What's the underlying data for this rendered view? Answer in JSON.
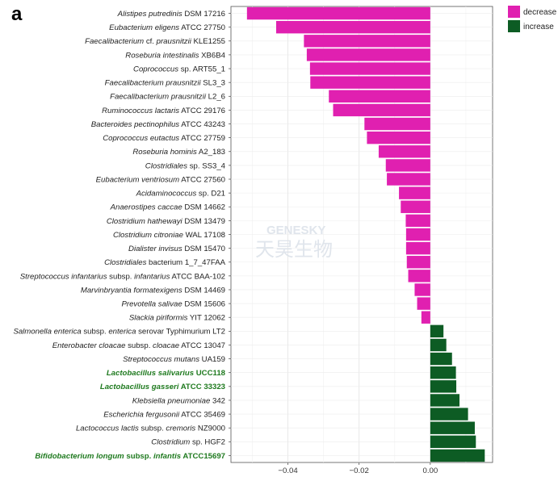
{
  "panel_label": "a",
  "watermark": {
    "line1": "GENESKY",
    "line2": "天昊生物"
  },
  "chart_data": {
    "type": "bar",
    "orientation": "horizontal",
    "xlim": [
      -0.056,
      0.0175
    ],
    "x_ticks": [
      -0.04,
      -0.02,
      0.0
    ],
    "x_tick_labels": [
      "−0.04",
      "−0.02",
      "0.00"
    ],
    "grid": true,
    "legend": {
      "placement": "top-right",
      "entries": [
        {
          "label": "decrease",
          "color": "#e020b0"
        },
        {
          "label": "increase",
          "color": "#0d5c24"
        }
      ]
    },
    "colors": {
      "decrease": "#e020b0",
      "increase": "#0d5c24",
      "highlight_text": "#1f7a1f"
    },
    "bars": [
      {
        "parts": [
          {
            "t": "Alistipes putredinis",
            "i": true
          },
          {
            "t": " DSM 17216",
            "i": false
          }
        ],
        "value": -0.0515,
        "group": "decrease",
        "highlight": false
      },
      {
        "parts": [
          {
            "t": "Eubacterium eligens",
            "i": true
          },
          {
            "t": " ATCC 27750",
            "i": false
          }
        ],
        "value": -0.0433,
        "group": "decrease",
        "highlight": false
      },
      {
        "parts": [
          {
            "t": "Faecalibacterium",
            "i": true
          },
          {
            "t": " cf. ",
            "i": false
          },
          {
            "t": "prausnitzii",
            "i": true
          },
          {
            "t": " KLE1255",
            "i": false
          }
        ],
        "value": -0.0355,
        "group": "decrease",
        "highlight": false
      },
      {
        "parts": [
          {
            "t": "Roseburia intestinalis",
            "i": true
          },
          {
            "t": " XB6B4",
            "i": false
          }
        ],
        "value": -0.0347,
        "group": "decrease",
        "highlight": false
      },
      {
        "parts": [
          {
            "t": "Coprococcus",
            "i": true
          },
          {
            "t": " sp. ART55_1",
            "i": false
          }
        ],
        "value": -0.0338,
        "group": "decrease",
        "highlight": false
      },
      {
        "parts": [
          {
            "t": "Faecalibacterium prausnitzii",
            "i": true
          },
          {
            "t": " SL3_3",
            "i": false
          }
        ],
        "value": -0.0337,
        "group": "decrease",
        "highlight": false
      },
      {
        "parts": [
          {
            "t": "Faecalibacterium prausnitzii",
            "i": true
          },
          {
            "t": " L2_6",
            "i": false
          }
        ],
        "value": -0.0285,
        "group": "decrease",
        "highlight": false
      },
      {
        "parts": [
          {
            "t": "Ruminococcus lactaris",
            "i": true
          },
          {
            "t": " ATCC 29176",
            "i": false
          }
        ],
        "value": -0.0273,
        "group": "decrease",
        "highlight": false
      },
      {
        "parts": [
          {
            "t": "Bacteroides pectinophilus",
            "i": true
          },
          {
            "t": " ATCC 43243",
            "i": false
          }
        ],
        "value": -0.0185,
        "group": "decrease",
        "highlight": false
      },
      {
        "parts": [
          {
            "t": "Coprococcus eutactus",
            "i": true
          },
          {
            "t": " ATCC 27759",
            "i": false
          }
        ],
        "value": -0.0178,
        "group": "decrease",
        "highlight": false
      },
      {
        "parts": [
          {
            "t": "Roseburia hominis",
            "i": true
          },
          {
            "t": " A2_183",
            "i": false
          }
        ],
        "value": -0.0145,
        "group": "decrease",
        "highlight": false
      },
      {
        "parts": [
          {
            "t": "Clostridiales",
            "i": true
          },
          {
            "t": " sp. SS3_4",
            "i": false
          }
        ],
        "value": -0.0125,
        "group": "decrease",
        "highlight": false
      },
      {
        "parts": [
          {
            "t": "Eubacterium ventriosum",
            "i": true
          },
          {
            "t": " ATCC 27560",
            "i": false
          }
        ],
        "value": -0.0122,
        "group": "decrease",
        "highlight": false
      },
      {
        "parts": [
          {
            "t": "Acidaminococcus",
            "i": true
          },
          {
            "t": " sp. D21",
            "i": false
          }
        ],
        "value": -0.0088,
        "group": "decrease",
        "highlight": false
      },
      {
        "parts": [
          {
            "t": "Anaerostipes caccae",
            "i": true
          },
          {
            "t": " DSM 14662",
            "i": false
          }
        ],
        "value": -0.0083,
        "group": "decrease",
        "highlight": false
      },
      {
        "parts": [
          {
            "t": "Clostridium hathewayi",
            "i": true
          },
          {
            "t": " DSM 13479",
            "i": false
          }
        ],
        "value": -0.0069,
        "group": "decrease",
        "highlight": false
      },
      {
        "parts": [
          {
            "t": "Clostridium citroniae",
            "i": true
          },
          {
            "t": " WAL 17108",
            "i": false
          }
        ],
        "value": -0.0068,
        "group": "decrease",
        "highlight": false
      },
      {
        "parts": [
          {
            "t": "Dialister invisus",
            "i": true
          },
          {
            "t": " DSM 15470",
            "i": false
          }
        ],
        "value": -0.0068,
        "group": "decrease",
        "highlight": false
      },
      {
        "parts": [
          {
            "t": "Clostridiales",
            "i": true
          },
          {
            "t": " bacterium 1_7_47FAA",
            "i": false
          }
        ],
        "value": -0.0066,
        "group": "decrease",
        "highlight": false
      },
      {
        "parts": [
          {
            "t": "Streptococcus infantarius",
            "i": true
          },
          {
            "t": " subsp. ",
            "i": false
          },
          {
            "t": "infantarius",
            "i": true
          },
          {
            "t": " ATCC BAA-102",
            "i": false
          }
        ],
        "value": -0.0062,
        "group": "decrease",
        "highlight": false
      },
      {
        "parts": [
          {
            "t": "Marvinbryantia formatexigens",
            "i": true
          },
          {
            "t": " DSM 14469",
            "i": false
          }
        ],
        "value": -0.0044,
        "group": "decrease",
        "highlight": false
      },
      {
        "parts": [
          {
            "t": "Prevotella salivae",
            "i": true
          },
          {
            "t": " DSM 15606",
            "i": false
          }
        ],
        "value": -0.0037,
        "group": "decrease",
        "highlight": false
      },
      {
        "parts": [
          {
            "t": "Slackia piriformis",
            "i": true
          },
          {
            "t": " YIT 12062",
            "i": false
          }
        ],
        "value": -0.0025,
        "group": "decrease",
        "highlight": false
      },
      {
        "parts": [
          {
            "t": "Salmonella enterica",
            "i": true
          },
          {
            "t": " subsp. ",
            "i": false
          },
          {
            "t": "enterica",
            "i": true
          },
          {
            "t": " serovar Typhimurium LT2",
            "i": false
          }
        ],
        "value": 0.0037,
        "group": "increase",
        "highlight": false
      },
      {
        "parts": [
          {
            "t": "Enterobacter cloacae",
            "i": true
          },
          {
            "t": " subsp. ",
            "i": false
          },
          {
            "t": "cloacae",
            "i": true
          },
          {
            "t": " ATCC 13047",
            "i": false
          }
        ],
        "value": 0.0045,
        "group": "increase",
        "highlight": false
      },
      {
        "parts": [
          {
            "t": "Streptococcus mutans",
            "i": true
          },
          {
            "t": " UA159",
            "i": false
          }
        ],
        "value": 0.0061,
        "group": "increase",
        "highlight": false
      },
      {
        "parts": [
          {
            "t": "Lactobacillus salivarius",
            "i": true
          },
          {
            "t": " UCC118",
            "i": false
          }
        ],
        "value": 0.0072,
        "group": "increase",
        "highlight": true
      },
      {
        "parts": [
          {
            "t": "Lactobacillus gasseri",
            "i": true
          },
          {
            "t": " ATCC 33323",
            "i": false
          }
        ],
        "value": 0.0073,
        "group": "increase",
        "highlight": true
      },
      {
        "parts": [
          {
            "t": "Klebsiella pneumoniae",
            "i": true
          },
          {
            "t": " 342",
            "i": false
          }
        ],
        "value": 0.0082,
        "group": "increase",
        "highlight": false
      },
      {
        "parts": [
          {
            "t": "Escherichia fergusonii",
            "i": true
          },
          {
            "t": " ATCC 35469",
            "i": false
          }
        ],
        "value": 0.0106,
        "group": "increase",
        "highlight": false
      },
      {
        "parts": [
          {
            "t": "Lactococcus lactis",
            "i": true
          },
          {
            "t": " subsp. ",
            "i": false
          },
          {
            "t": "cremoris",
            "i": true
          },
          {
            "t": " NZ9000",
            "i": false
          }
        ],
        "value": 0.0125,
        "group": "increase",
        "highlight": false
      },
      {
        "parts": [
          {
            "t": "Clostridium",
            "i": true
          },
          {
            "t": " sp. HGF2",
            "i": false
          }
        ],
        "value": 0.0128,
        "group": "increase",
        "highlight": false
      },
      {
        "parts": [
          {
            "t": "Bifidobacterium longum",
            "i": true
          },
          {
            "t": " subsp. ",
            "i": false
          },
          {
            "t": "infantis",
            "i": true
          },
          {
            "t": " ATCC15697",
            "i": false
          }
        ],
        "value": 0.0153,
        "group": "increase",
        "highlight": true
      }
    ]
  }
}
